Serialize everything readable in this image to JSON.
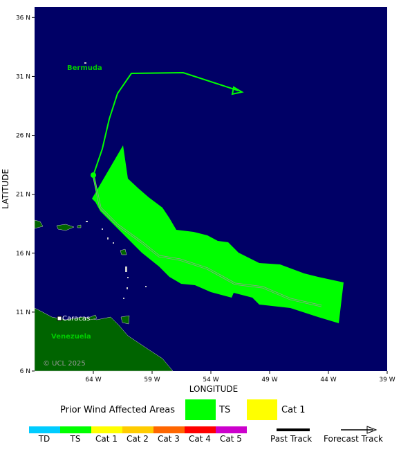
{
  "map": {
    "xlim": [
      -69,
      -39
    ],
    "ylim": [
      6,
      36.9
    ],
    "xticks": [
      {
        "value": -64,
        "label": "64 W"
      },
      {
        "value": -59,
        "label": "59 W"
      },
      {
        "value": -54,
        "label": "54 W"
      },
      {
        "value": -49,
        "label": "49 W"
      },
      {
        "value": -44,
        "label": "44 W"
      },
      {
        "value": -39,
        "label": "39 W"
      }
    ],
    "yticks": [
      {
        "value": 36,
        "label": "36 N"
      },
      {
        "value": 31,
        "label": "31 N"
      },
      {
        "value": 26,
        "label": "26 N"
      },
      {
        "value": 21,
        "label": "21 N"
      },
      {
        "value": 16,
        "label": "16 N"
      },
      {
        "value": 11,
        "label": "11 N"
      },
      {
        "value": 6,
        "label": "6 N"
      }
    ],
    "xlabel": "LONGITUDE",
    "ylabel": "LATITUDE",
    "places": {
      "bermuda": "Bermuda",
      "caracas": "Caracas",
      "venezuela": "Venezuela"
    },
    "copyright": "© UCL 2025"
  },
  "legend": {
    "wind_title": "Prior Wind Affected Areas",
    "wind_ts": "TS",
    "wind_cat1": "Cat 1",
    "scale": [
      "TD",
      "TS",
      "Cat 1",
      "Cat 2",
      "Cat 3",
      "Cat 4",
      "Cat 5"
    ],
    "past_track": "Past Track",
    "forecast_track": "Forecast Track"
  }
}
